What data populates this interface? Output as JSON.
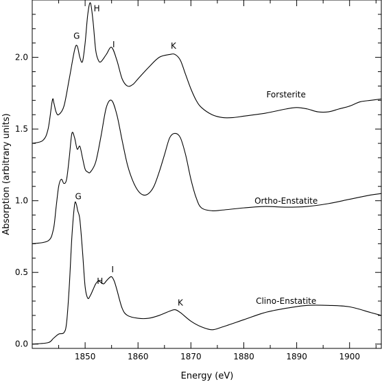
{
  "chart_data": {
    "type": "line",
    "title": "",
    "xlabel": "Energy (eV)",
    "ylabel": "Absorption (arbitrary units)",
    "xlim": [
      1840,
      1906
    ],
    "ylim": [
      -0.03,
      2.4
    ],
    "x_ticks": [
      1850,
      1860,
      1870,
      1880,
      1890,
      1900
    ],
    "y_ticks": [
      0.0,
      0.5,
      1.0,
      1.5,
      2.0
    ],
    "y_tick_labels": [
      "0.0",
      "0.5",
      "1.0",
      "1.5",
      "2.0"
    ],
    "grid": false,
    "series": [
      {
        "name": "Forsterite",
        "label_at": [
          1888,
          1.72
        ],
        "x": [
          1840,
          1842,
          1843,
          1843.8,
          1844.1,
          1844.5,
          1845,
          1846,
          1847,
          1848,
          1848.5,
          1849,
          1849.5,
          1850,
          1850.5,
          1851,
          1851.5,
          1852,
          1852.5,
          1853,
          1854,
          1855,
          1856,
          1857,
          1858,
          1859,
          1860,
          1862,
          1864,
          1866,
          1867,
          1868,
          1869,
          1870,
          1871,
          1872,
          1874,
          1876,
          1878,
          1880,
          1884,
          1888,
          1890,
          1892,
          1894,
          1896,
          1898,
          1900,
          1902,
          1904,
          1906
        ],
        "values": [
          1.4,
          1.42,
          1.5,
          1.7,
          1.68,
          1.62,
          1.6,
          1.66,
          1.85,
          2.05,
          2.08,
          2.0,
          1.97,
          2.1,
          2.3,
          2.38,
          2.25,
          2.05,
          1.98,
          1.97,
          2.02,
          2.07,
          1.98,
          1.85,
          1.8,
          1.81,
          1.85,
          1.93,
          2.0,
          2.02,
          2.02,
          1.98,
          1.88,
          1.78,
          1.7,
          1.65,
          1.6,
          1.58,
          1.58,
          1.59,
          1.61,
          1.64,
          1.65,
          1.64,
          1.62,
          1.62,
          1.64,
          1.66,
          1.69,
          1.7,
          1.71
        ]
      },
      {
        "name": "Ortho-Enstatite",
        "label_at": [
          1888,
          0.98
        ],
        "x": [
          1840,
          1843,
          1844,
          1844.5,
          1845,
          1845.5,
          1846,
          1846.5,
          1847,
          1847.5,
          1848,
          1848.5,
          1849,
          1849.5,
          1850,
          1850.5,
          1851,
          1852,
          1853,
          1854,
          1855,
          1856,
          1857,
          1858,
          1859,
          1860,
          1861,
          1862,
          1863,
          1864,
          1865,
          1866,
          1867,
          1868,
          1869,
          1870,
          1871,
          1872,
          1874,
          1876,
          1880,
          1884,
          1888,
          1892,
          1896,
          1900,
          1904,
          1906
        ],
        "values": [
          0.7,
          0.72,
          0.8,
          0.95,
          1.1,
          1.15,
          1.12,
          1.15,
          1.3,
          1.47,
          1.44,
          1.36,
          1.38,
          1.3,
          1.22,
          1.2,
          1.2,
          1.27,
          1.45,
          1.65,
          1.7,
          1.6,
          1.42,
          1.25,
          1.14,
          1.07,
          1.04,
          1.05,
          1.1,
          1.2,
          1.32,
          1.44,
          1.47,
          1.44,
          1.32,
          1.15,
          1.02,
          0.95,
          0.93,
          0.935,
          0.95,
          0.96,
          0.955,
          0.96,
          0.98,
          1.01,
          1.04,
          1.05
        ]
      },
      {
        "name": "Clino-Enstatite",
        "label_at": [
          1888,
          0.28
        ],
        "x": [
          1840,
          1843,
          1844,
          1845,
          1846,
          1846.5,
          1847,
          1847.5,
          1848,
          1848.3,
          1848.6,
          1849,
          1849.5,
          1850,
          1850.5,
          1851,
          1851.5,
          1852,
          1852.5,
          1853,
          1853.5,
          1854,
          1854.5,
          1855,
          1855.5,
          1856,
          1857,
          1858,
          1860,
          1862,
          1864,
          1866,
          1867,
          1868,
          1870,
          1872,
          1874,
          1876,
          1880,
          1884,
          1888,
          1892,
          1896,
          1900,
          1904,
          1906
        ],
        "values": [
          0.0,
          0.01,
          0.04,
          0.07,
          0.08,
          0.15,
          0.4,
          0.75,
          0.97,
          0.98,
          0.93,
          0.87,
          0.65,
          0.4,
          0.32,
          0.34,
          0.38,
          0.42,
          0.44,
          0.43,
          0.42,
          0.44,
          0.46,
          0.47,
          0.44,
          0.38,
          0.25,
          0.2,
          0.18,
          0.18,
          0.2,
          0.23,
          0.24,
          0.22,
          0.16,
          0.12,
          0.1,
          0.12,
          0.17,
          0.22,
          0.25,
          0.27,
          0.27,
          0.26,
          0.22,
          0.2
        ]
      }
    ],
    "annotations": [
      {
        "text": "G",
        "x": 1848.4,
        "y": 2.13
      },
      {
        "text": "H",
        "x": 1852.2,
        "y": 2.32
      },
      {
        "text": "I",
        "x": 1855.4,
        "y": 2.07
      },
      {
        "text": "K",
        "x": 1866.7,
        "y": 2.06
      },
      {
        "text": "G",
        "x": 1848.7,
        "y": 1.01
      },
      {
        "text": "H",
        "x": 1852.8,
        "y": 0.42
      },
      {
        "text": "I",
        "x": 1855.2,
        "y": 0.5
      },
      {
        "text": "K",
        "x": 1868.0,
        "y": 0.27
      }
    ]
  }
}
